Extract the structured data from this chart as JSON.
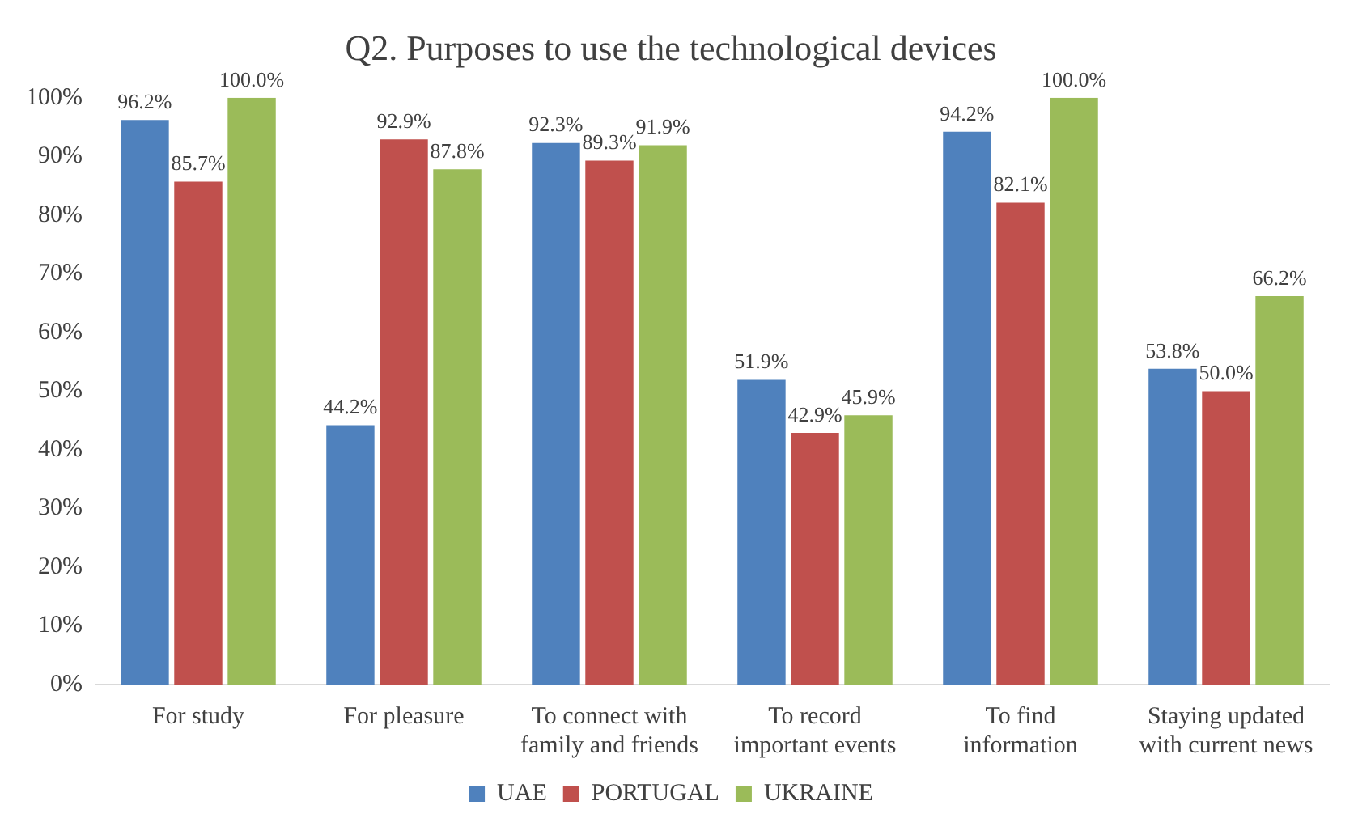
{
  "chart_data": {
    "type": "bar",
    "title": "Q2. Purposes to use the technological devices",
    "categories": [
      "For study",
      "For pleasure",
      "To connect with\nfamily and friends",
      "To record\nimportant events",
      "To find\ninformation",
      "Staying updated\nwith current news"
    ],
    "series": [
      {
        "name": "UAE",
        "color": "#4f81bd",
        "values": [
          96.2,
          44.2,
          92.3,
          51.9,
          94.2,
          53.8
        ],
        "value_labels": [
          "96.2%",
          "44.2%",
          "92.3%",
          "51.9%",
          "94.2%",
          "53.8%"
        ]
      },
      {
        "name": "PORTUGAL",
        "color": "#c0504d",
        "values": [
          85.7,
          92.9,
          89.3,
          42.9,
          82.1,
          50.0
        ],
        "value_labels": [
          "85.7%",
          "92.9%",
          "89.3%",
          "42.9%",
          "82.1%",
          "50.0%"
        ]
      },
      {
        "name": "UKRAINE",
        "color": "#9bbb59",
        "values": [
          100.0,
          87.8,
          91.9,
          45.9,
          100.0,
          66.2
        ],
        "value_labels": [
          "100.0%",
          "87.8%",
          "91.9%",
          "45.9%",
          "100.0%",
          "66.2%"
        ]
      }
    ],
    "ylim": [
      0,
      100
    ],
    "yticks": [
      {
        "value": 0,
        "label": "0%"
      },
      {
        "value": 10,
        "label": "10%"
      },
      {
        "value": 20,
        "label": "20%"
      },
      {
        "value": 30,
        "label": "30%"
      },
      {
        "value": 40,
        "label": "40%"
      },
      {
        "value": 50,
        "label": "50%"
      },
      {
        "value": 60,
        "label": "60%"
      },
      {
        "value": 70,
        "label": "70%"
      },
      {
        "value": 80,
        "label": "80%"
      },
      {
        "value": 90,
        "label": "90%"
      },
      {
        "value": 100,
        "label": "100%"
      }
    ],
    "grid": false,
    "legend": "bottom"
  }
}
